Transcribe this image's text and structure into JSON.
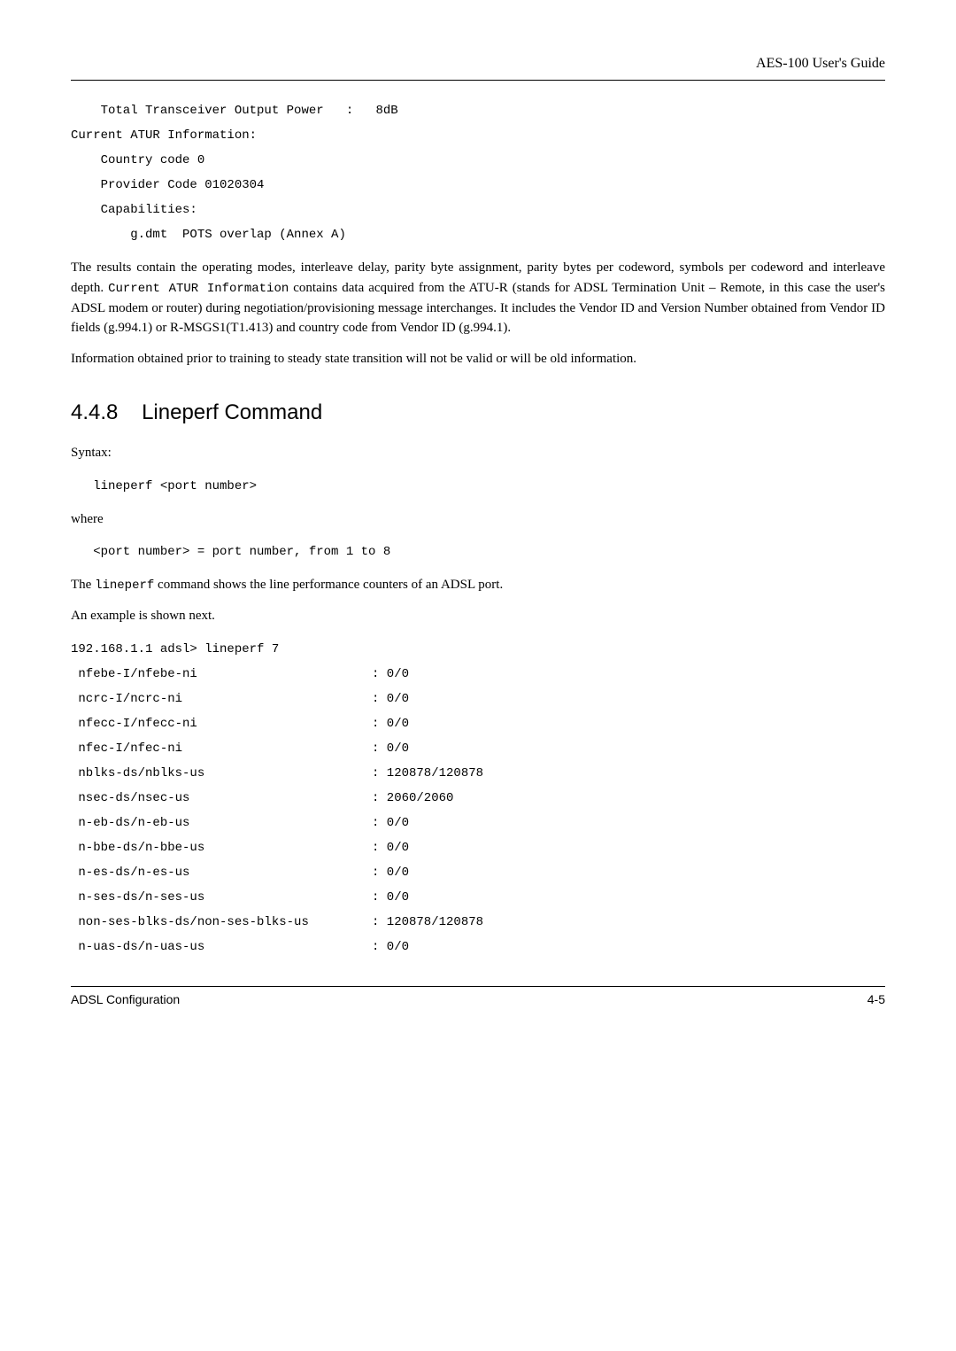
{
  "header": {
    "title": "AES-100 User's Guide"
  },
  "codeblock1": "    Total Transceiver Output Power   :   8dB\nCurrent ATUR Information:\n    Country code 0\n    Provider Code 01020304\n    Capabilities:\n        g.dmt  POTS overlap (Annex A)",
  "para1_a": "The results contain the operating modes, interleave delay, parity byte assignment, parity bytes per codeword, symbols per codeword and interleave depth. ",
  "para1_b": "Current ATUR Information",
  "para1_c": " contains data acquired from the ATU-R (stands for ADSL Termination Unit – Remote, in this case the user's ADSL modem or router) during negotiation/provisioning message interchanges. It includes the Vendor ID and Version Number obtained from Vendor ID fields (g.994.1) or R-MSGS1(T1.413) and country code from Vendor ID (g.994.1).",
  "para2": "Information obtained prior to training to steady state transition will not be valid or will be old information.",
  "section_number": "4.4.8",
  "section_title": "Lineperf Command",
  "syntax_label": "Syntax:",
  "syntax_code": "   lineperf <port number>",
  "where_label": "where",
  "where_code": "   <port number> = port number, from 1 to 8",
  "para3_a": "The ",
  "para3_b": "lineperf",
  "para3_c": " command shows the line performance counters of an ADSL port.",
  "para4": "An example is shown next.",
  "example_header": "192.168.1.1 adsl> lineperf 7",
  "rows": [
    {
      "label": " nfebe-I/nfebe-ni",
      "value": ": 0/0"
    },
    {
      "label": " ncrc-I/ncrc-ni",
      "value": ": 0/0"
    },
    {
      "label": " nfecc-I/nfecc-ni",
      "value": ": 0/0"
    },
    {
      "label": " nfec-I/nfec-ni",
      "value": ": 0/0"
    },
    {
      "label": " nblks-ds/nblks-us",
      "value": ": 120878/120878"
    },
    {
      "label": " nsec-ds/nsec-us",
      "value": ": 2060/2060"
    },
    {
      "label": " n-eb-ds/n-eb-us",
      "value": ": 0/0"
    },
    {
      "label": " n-bbe-ds/n-bbe-us",
      "value": ": 0/0"
    },
    {
      "label": " n-es-ds/n-es-us",
      "value": ": 0/0"
    },
    {
      "label": " n-ses-ds/n-ses-us",
      "value": ": 0/0"
    },
    {
      "label": " non-ses-blks-ds/non-ses-blks-us ",
      "value": ": 120878/120878"
    },
    {
      "label": " n-uas-ds/n-uas-us",
      "value": ": 0/0"
    }
  ],
  "footer": {
    "left": "ADSL Configuration",
    "right": "4-5"
  }
}
